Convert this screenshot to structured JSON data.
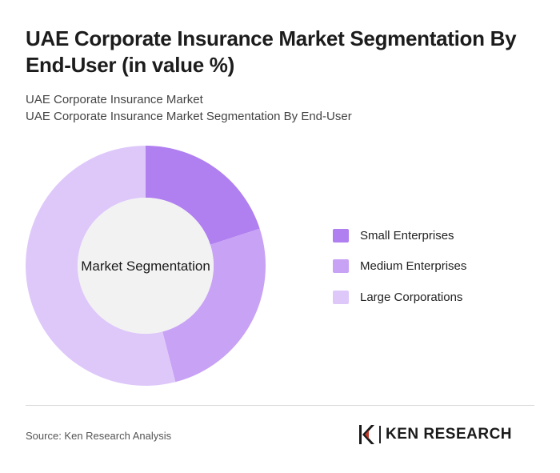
{
  "header": {
    "title": "UAE Corporate Insurance Market Segmentation By End-User (in value %)",
    "subtitle_line1": "UAE Corporate Insurance Market",
    "subtitle_line2": "UAE Corporate Insurance Market Segmentation By End-User"
  },
  "chart_data": {
    "type": "pie",
    "variant": "donut",
    "center_label": "Market Segmentation",
    "categories": [
      "Small Enterprises",
      "Medium Enterprises",
      "Large Corporations"
    ],
    "values": [
      20,
      26,
      54
    ],
    "colors": [
      "#b07ff0",
      "#c8a2f5",
      "#dec8fa"
    ],
    "legend_position": "right"
  },
  "footer": {
    "source": "Source: Ken Research Analysis",
    "logo_text": "KEN RESEARCH"
  },
  "icons": {
    "logo": "ken-research-logo-icon"
  }
}
